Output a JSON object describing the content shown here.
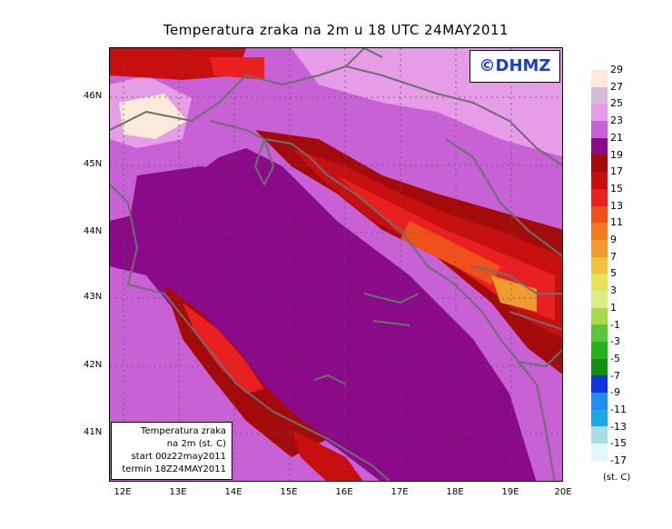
{
  "title": "Temperatura zraka na 2m u 18 UTC 24MAY2011",
  "credit": "©DHMZ",
  "infobox": {
    "line1": "Temperatura zraka",
    "line2": "na 2m (st. C)",
    "line3": "start 00z22may2011",
    "line4": "termin 18Z24MAY2011"
  },
  "lat_labels": [
    "46N",
    "45N",
    "44N",
    "43N",
    "42N",
    "41N"
  ],
  "lon_labels": [
    "12E",
    "13E",
    "14E",
    "15E",
    "16E",
    "17E",
    "18E",
    "19E",
    "20E"
  ],
  "legend": {
    "unit": "(st. C)",
    "labels": [
      "29",
      "27",
      "25",
      "23",
      "21",
      "19",
      "17",
      "15",
      "13",
      "11",
      "9",
      "7",
      "5",
      "3",
      "1",
      "-1",
      "-3",
      "-5",
      "-7",
      "-9",
      "-11",
      "-13",
      "-15",
      "-17"
    ],
    "colors": [
      "#fbe9da",
      "#d9bad9",
      "#e69ce6",
      "#c861d6",
      "#8a0a8a",
      "#a30b0b",
      "#c80f0f",
      "#ea2020",
      "#f0501a",
      "#f47a1e",
      "#ef9b30",
      "#eec43d",
      "#e7e256",
      "#dcec86",
      "#a8d94a",
      "#5cc63a",
      "#22b41a",
      "#138c14",
      "#1433e0",
      "#1f8ef0",
      "#1aa9e6",
      "#a9dbe8",
      "#e4f7f8"
    ]
  }
}
